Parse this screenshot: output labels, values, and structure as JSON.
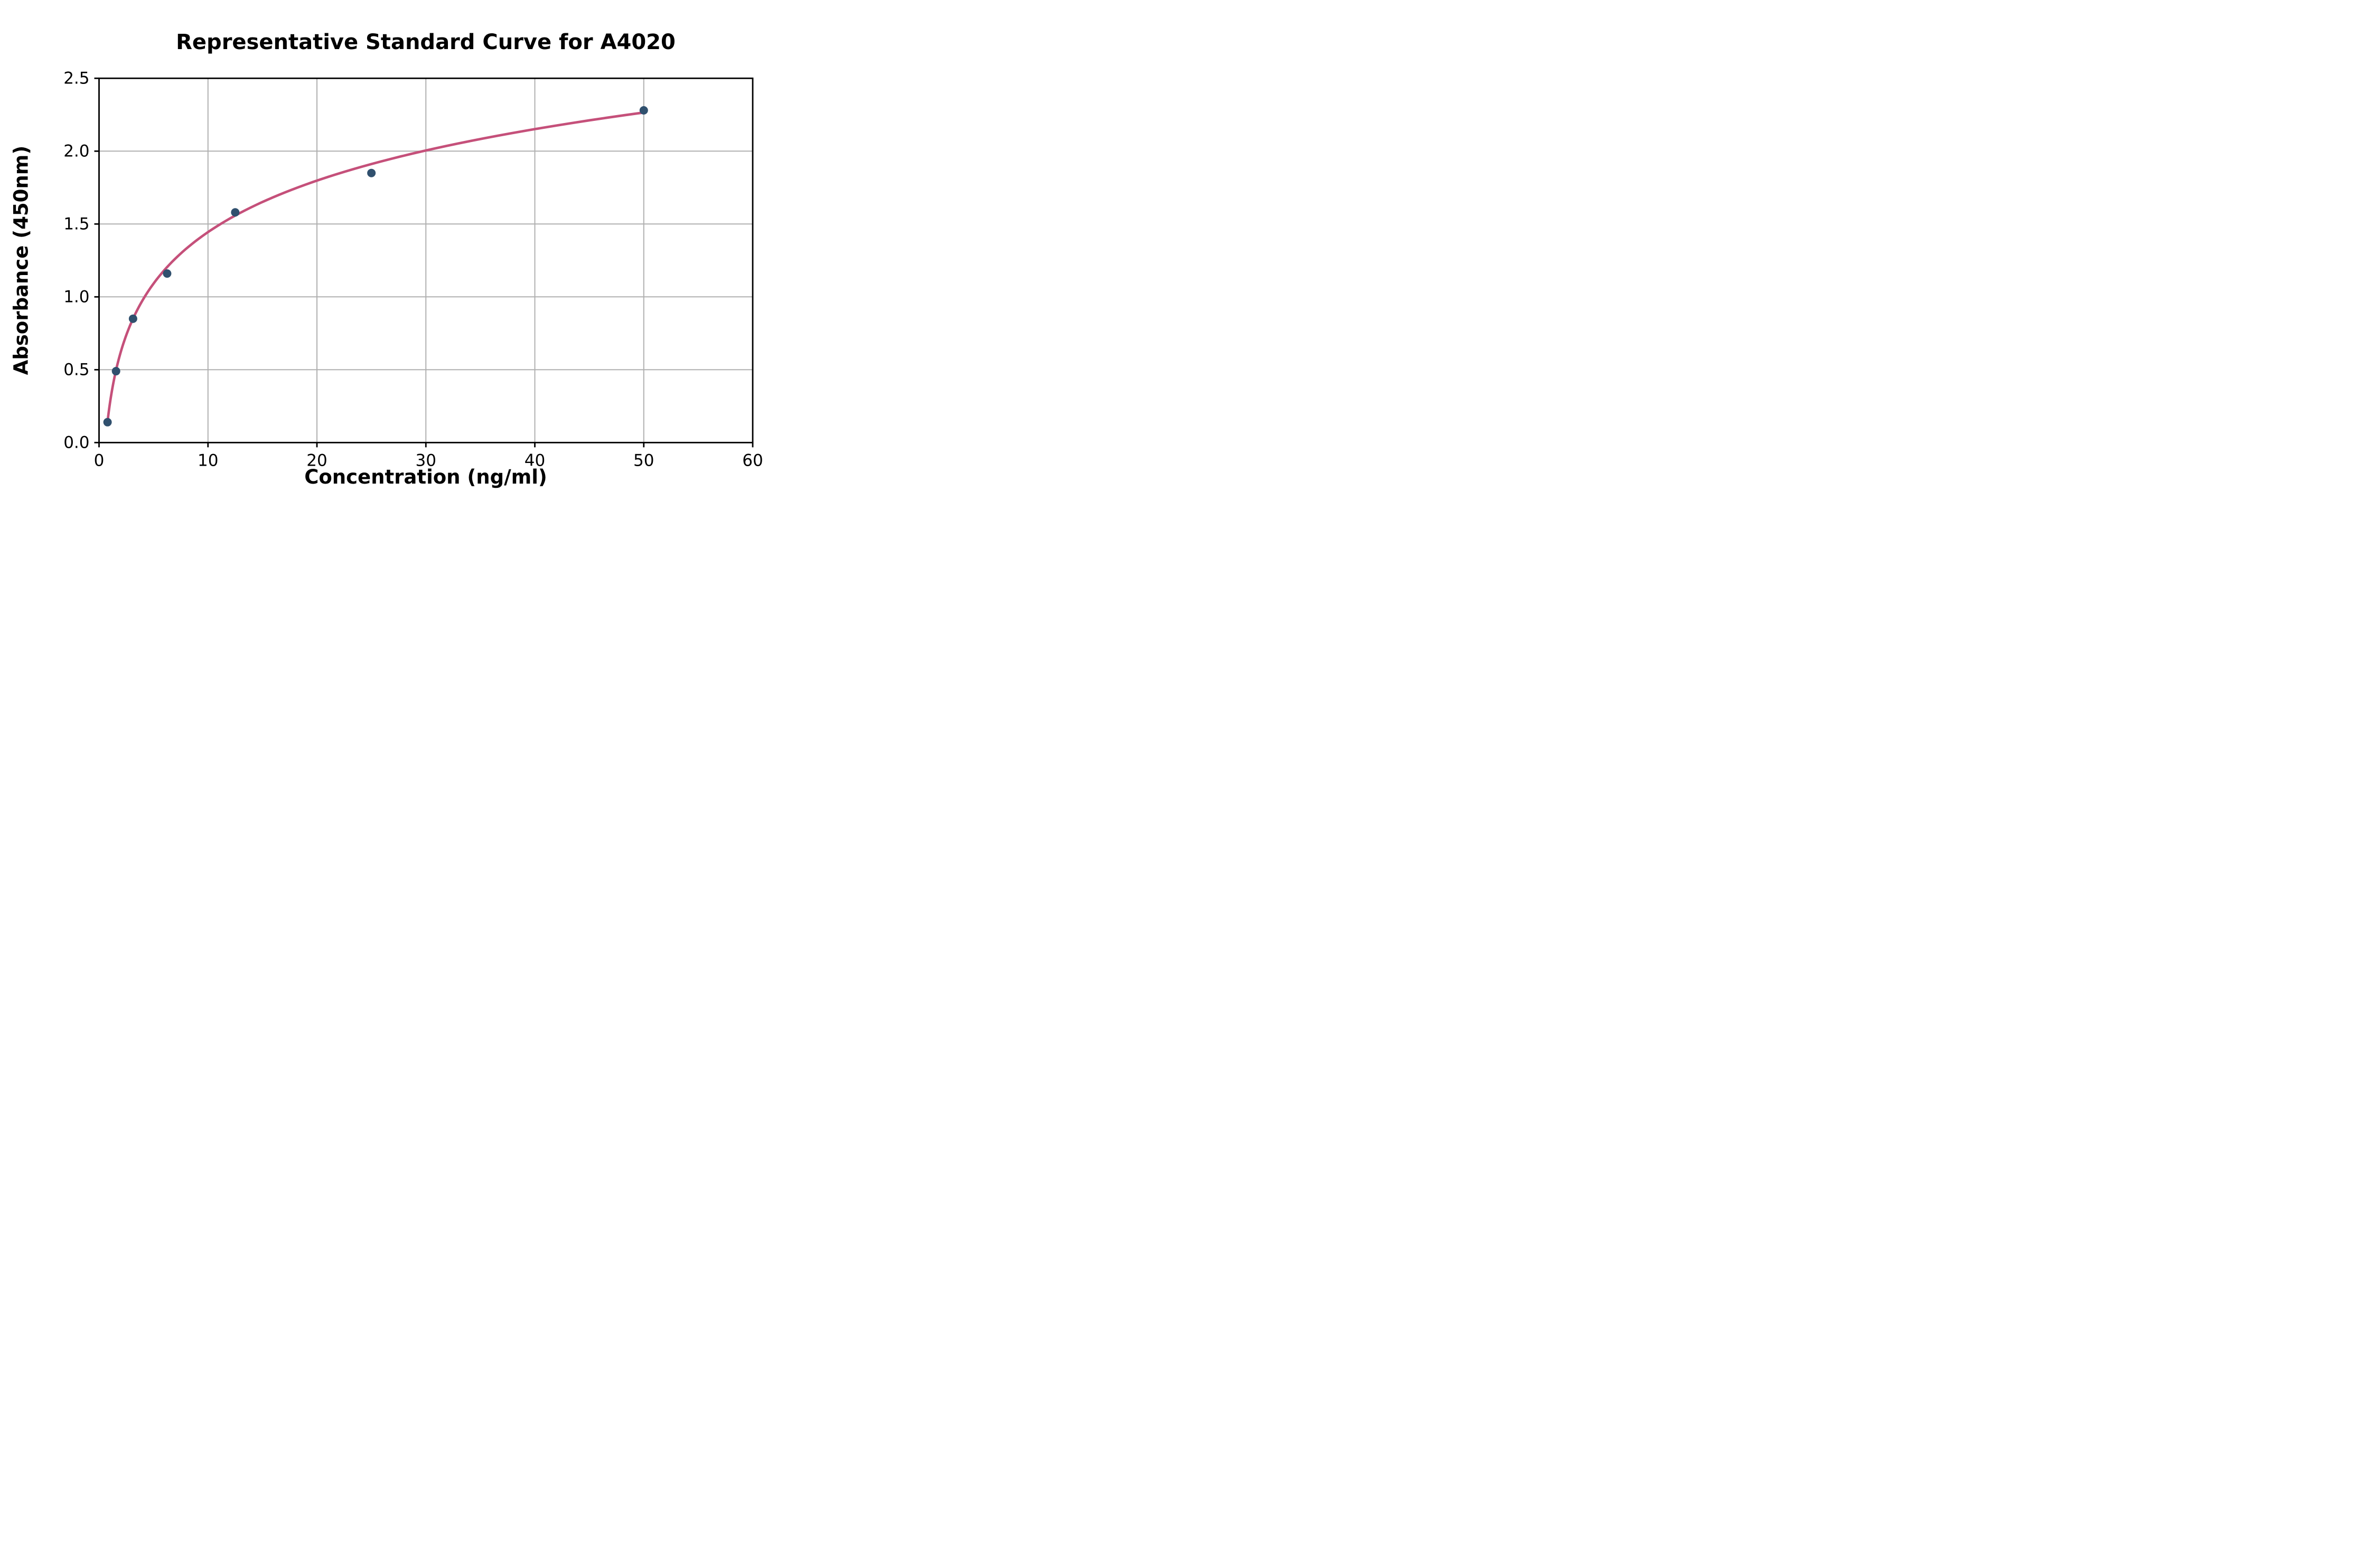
{
  "chart_data": {
    "type": "scatter",
    "title": "Representative Standard Curve for A4020",
    "xlabel": "Concentration (ng/ml)",
    "ylabel": "Absorbance (450nm)",
    "xlim": [
      0,
      60
    ],
    "ylim": [
      0,
      2.5
    ],
    "x_ticks": [
      0,
      10,
      20,
      30,
      40,
      50,
      60
    ],
    "x_tick_labels": [
      "0",
      "10",
      "20",
      "30",
      "40",
      "50",
      "60"
    ],
    "y_ticks": [
      0.0,
      0.5,
      1.0,
      1.5,
      2.0,
      2.5
    ],
    "y_tick_labels": [
      "0.0",
      "0.5",
      "1.0",
      "1.5",
      "2.0",
      "2.5"
    ],
    "grid": true,
    "legend": "none",
    "points": [
      {
        "x": 0.78,
        "y": 0.14
      },
      {
        "x": 1.56,
        "y": 0.49
      },
      {
        "x": 3.12,
        "y": 0.85
      },
      {
        "x": 6.25,
        "y": 1.16
      },
      {
        "x": 12.5,
        "y": 1.58
      },
      {
        "x": 25,
        "y": 1.85
      },
      {
        "x": 50,
        "y": 2.28
      }
    ],
    "fit_curve": {
      "model": "logarithmic",
      "a": 0.51,
      "b": 0.27,
      "x_start": 0.78,
      "x_end": 50
    },
    "colors": {
      "point": "#30506E",
      "curve": "#C5507A",
      "grid": "#B0B0B0",
      "axis": "#000000",
      "text": "#000000"
    }
  }
}
